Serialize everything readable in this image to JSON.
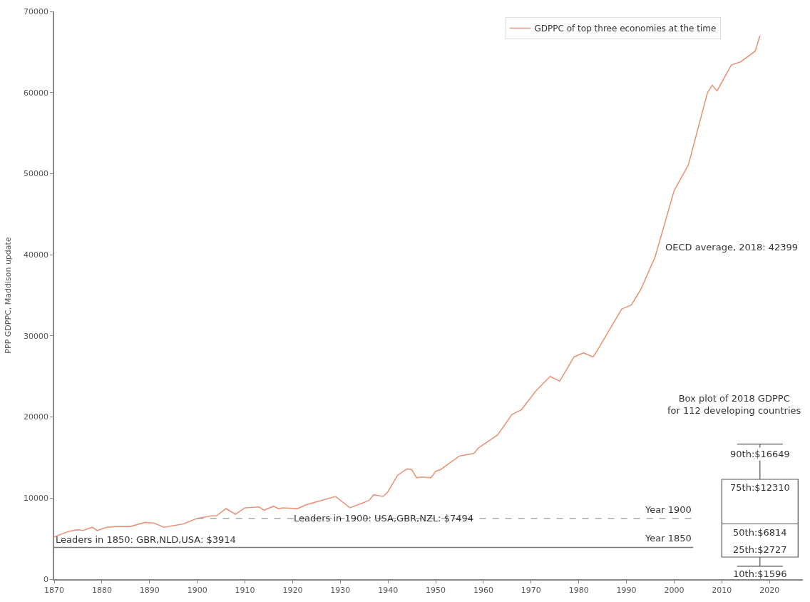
{
  "chart_data": {
    "type": "line",
    "ylabel": "PPP GDPPC, Maddison update",
    "xlim": [
      1870,
      2027
    ],
    "ylim": [
      0,
      70000
    ],
    "xticks": [
      1870,
      1880,
      1890,
      1900,
      1910,
      1920,
      1930,
      1940,
      1950,
      1960,
      1970,
      1980,
      1990,
      2000,
      2010,
      2020
    ],
    "yticks": [
      0,
      10000,
      20000,
      30000,
      40000,
      50000,
      60000,
      70000
    ],
    "legend": "top right",
    "marker": "none",
    "series": [
      {
        "name": "GDPPC of top three economies at the time",
        "color": "#e8967a",
        "line_style": "solid",
        "x": [
          1870,
          1873,
          1875,
          1876,
          1878,
          1879,
          1881,
          1883,
          1886,
          1889,
          1891,
          1893,
          1897,
          1900,
          1903,
          1904,
          1906,
          1908,
          1910,
          1913,
          1914,
          1916,
          1917,
          1918,
          1921,
          1923,
          1929,
          1932,
          1936,
          1937,
          1939,
          1940,
          1942,
          1944,
          1945,
          1946,
          1947,
          1949,
          1950,
          1951,
          1955,
          1958,
          1959,
          1963,
          1966,
          1968,
          1971,
          1974,
          1976,
          1979,
          1981,
          1983,
          1984,
          1989,
          1991,
          1993,
          1996,
          2000,
          2003,
          2007,
          2008,
          2009,
          2012,
          2014,
          2017,
          2018
        ],
        "values": [
          5200,
          5900,
          6100,
          6000,
          6400,
          6000,
          6400,
          6500,
          6500,
          7000,
          6900,
          6400,
          6800,
          7500,
          7800,
          7800,
          8700,
          8000,
          8800,
          8900,
          8500,
          9000,
          8700,
          8800,
          8700,
          9200,
          10200,
          8800,
          9700,
          10400,
          10200,
          10800,
          12800,
          13600,
          13500,
          12500,
          12600,
          12500,
          13300,
          13500,
          15200,
          15500,
          16200,
          17800,
          20300,
          20900,
          23200,
          25000,
          24400,
          27400,
          27900,
          27400,
          28300,
          33300,
          33800,
          35700,
          39700,
          47900,
          51100,
          60000,
          60900,
          60200,
          63400,
          63800,
          65100,
          67000
        ]
      },
      {
        "type": "line",
        "color": "#777777",
        "line_style": "solid",
        "x": [
          1870,
          2004
        ],
        "values": [
          3914,
          3914
        ]
      },
      {
        "type": "line",
        "color": "#999999",
        "line_style": "dashed",
        "x": [
          1900,
          2004
        ],
        "values": [
          7494,
          7494
        ]
      },
      {
        "type": "box",
        "color": "#555555",
        "x": [
          2018
        ],
        "boxes": [
          {
            "low": 1596,
            "q1": 2727,
            "median": 6814,
            "q3": 12310,
            "high": 16649
          }
        ]
      }
    ],
    "annotations": [
      {
        "text": "Leaders in 1850: GBR,NLD,USA: $3914",
        "x": 1870,
        "y": 3914
      },
      {
        "text": "Leaders in 1900: USA,GBR,NZL: $7494",
        "x": 1920,
        "y": 7494
      },
      {
        "text": "Year 1850",
        "x": 2004,
        "y": 3914
      },
      {
        "text": "Year 1900",
        "x": 2004,
        "y": 7494
      },
      "OECD average, 2018: 42399",
      "Box plot of 2018 GDPPC\nfor 112 developing countries",
      {
        "text": "90th:$16649",
        "x": 2018,
        "y": 16649
      },
      {
        "text": "75th:$12310",
        "x": 2018,
        "y": 12310
      },
      {
        "text": "50th:$6814",
        "x": 2018,
        "y": 6814
      },
      {
        "text": "25th:$2727",
        "x": 2018,
        "y": 2727
      },
      {
        "text": "10th:$1596",
        "x": 2018,
        "y": 1596
      }
    ]
  }
}
